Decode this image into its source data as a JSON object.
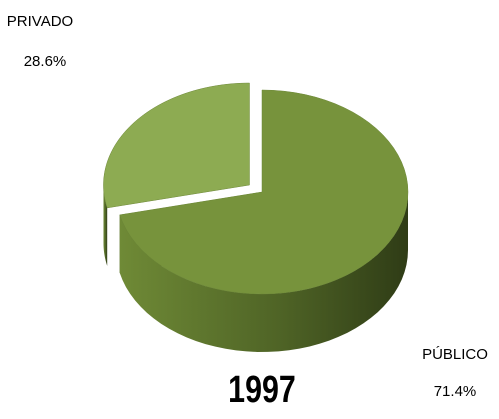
{
  "chart_data": {
    "type": "pie3d",
    "title": "1997",
    "categories": [
      "PÚBLICO",
      "PRIVADO"
    ],
    "values": [
      71.4,
      28.6
    ],
    "value_labels": [
      "71.4%",
      "28.6%"
    ],
    "colors": [
      "#77933c",
      "#8dab52"
    ],
    "exploded": [
      false,
      true
    ]
  }
}
